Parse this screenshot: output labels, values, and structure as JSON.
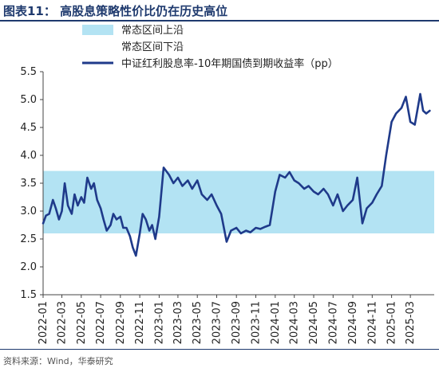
{
  "figure": {
    "title": "图表11：  高股息策略性价比仍在历史高位",
    "source": "资料来源：Wind，华泰研究"
  },
  "colors": {
    "band": "#b3e3f3",
    "line": "#1f3a8a",
    "title": "#1f3a6e"
  },
  "chart_data": {
    "type": "line",
    "title": "",
    "xlabel": "",
    "ylabel": "",
    "ylim": [
      1.5,
      5.5
    ],
    "yticks": [
      1.5,
      2.0,
      2.5,
      3.0,
      3.5,
      4.0,
      4.5,
      5.0,
      5.5
    ],
    "xlim": [
      "2022-01",
      "2025-05"
    ],
    "xticks": [
      "2022-01",
      "2022-03",
      "2022-05",
      "2022-07",
      "2022-09",
      "2022-11",
      "2023-01",
      "2023-03",
      "2023-05",
      "2023-07",
      "2023-09",
      "2023-11",
      "2024-01",
      "2024-03",
      "2024-05",
      "2024-07",
      "2024-09",
      "2024-11",
      "2025-01",
      "2025-03"
    ],
    "legend": {
      "placement": "top-left",
      "entries": [
        "常态区间上沿",
        "常态区间下沿",
        "中证红利股息率-10年期国债到期收益率（pp）"
      ]
    },
    "band": {
      "upper": 3.72,
      "lower": 2.6
    },
    "series": [
      {
        "name": "中证红利股息率-10年期国债到期收益率（pp）",
        "x": [
          "2022-01-01",
          "2022-01-10",
          "2022-01-20",
          "2022-02-01",
          "2022-02-10",
          "2022-02-20",
          "2022-03-01",
          "2022-03-10",
          "2022-03-20",
          "2022-04-01",
          "2022-04-10",
          "2022-04-20",
          "2022-05-01",
          "2022-05-10",
          "2022-05-20",
          "2022-06-01",
          "2022-06-10",
          "2022-06-20",
          "2022-07-01",
          "2022-07-10",
          "2022-07-20",
          "2022-08-01",
          "2022-08-10",
          "2022-08-20",
          "2022-09-01",
          "2022-09-10",
          "2022-09-20",
          "2022-10-01",
          "2022-10-10",
          "2022-10-20",
          "2022-11-01",
          "2022-11-10",
          "2022-11-20",
          "2022-12-01",
          "2022-12-10",
          "2022-12-20",
          "2023-01-01",
          "2023-01-15",
          "2023-02-01",
          "2023-02-15",
          "2023-03-01",
          "2023-03-15",
          "2023-04-01",
          "2023-04-15",
          "2023-05-01",
          "2023-05-15",
          "2023-06-01",
          "2023-06-15",
          "2023-07-01",
          "2023-07-15",
          "2023-08-01",
          "2023-08-15",
          "2023-09-01",
          "2023-09-15",
          "2023-10-01",
          "2023-10-15",
          "2023-11-01",
          "2023-11-15",
          "2023-12-01",
          "2023-12-15",
          "2024-01-01",
          "2024-01-15",
          "2024-02-01",
          "2024-02-15",
          "2024-03-01",
          "2024-03-15",
          "2024-04-01",
          "2024-04-15",
          "2024-05-01",
          "2024-05-15",
          "2024-06-01",
          "2024-06-15",
          "2024-07-01",
          "2024-07-15",
          "2024-08-01",
          "2024-08-15",
          "2024-09-01",
          "2024-09-15",
          "2024-10-01",
          "2024-10-15",
          "2024-11-01",
          "2024-11-15",
          "2024-12-01",
          "2024-12-15",
          "2025-01-01",
          "2025-01-15",
          "2025-02-01",
          "2025-02-15",
          "2025-03-01",
          "2025-03-15",
          "2025-04-01",
          "2025-04-10",
          "2025-04-20",
          "2025-05-01"
        ],
        "y": [
          2.78,
          2.92,
          2.95,
          3.2,
          3.05,
          2.85,
          3.0,
          3.5,
          3.1,
          2.95,
          3.3,
          3.1,
          3.25,
          3.15,
          3.6,
          3.4,
          3.5,
          3.2,
          3.05,
          2.85,
          2.65,
          2.75,
          2.95,
          2.85,
          2.9,
          2.7,
          2.7,
          2.55,
          2.35,
          2.2,
          2.6,
          2.95,
          2.85,
          2.65,
          2.75,
          2.5,
          2.9,
          3.78,
          3.65,
          3.5,
          3.6,
          3.45,
          3.55,
          3.4,
          3.55,
          3.3,
          3.2,
          3.3,
          3.1,
          2.95,
          2.45,
          2.65,
          2.7,
          2.6,
          2.65,
          2.62,
          2.7,
          2.68,
          2.72,
          2.75,
          3.35,
          3.65,
          3.6,
          3.7,
          3.55,
          3.5,
          3.4,
          3.45,
          3.35,
          3.3,
          3.4,
          3.3,
          3.1,
          3.3,
          3.0,
          3.1,
          3.2,
          3.6,
          2.78,
          3.05,
          3.15,
          3.3,
          3.45,
          4.0,
          4.6,
          4.75,
          4.85,
          5.05,
          4.6,
          4.55,
          5.1,
          4.8,
          4.75,
          4.8
        ]
      }
    ]
  }
}
